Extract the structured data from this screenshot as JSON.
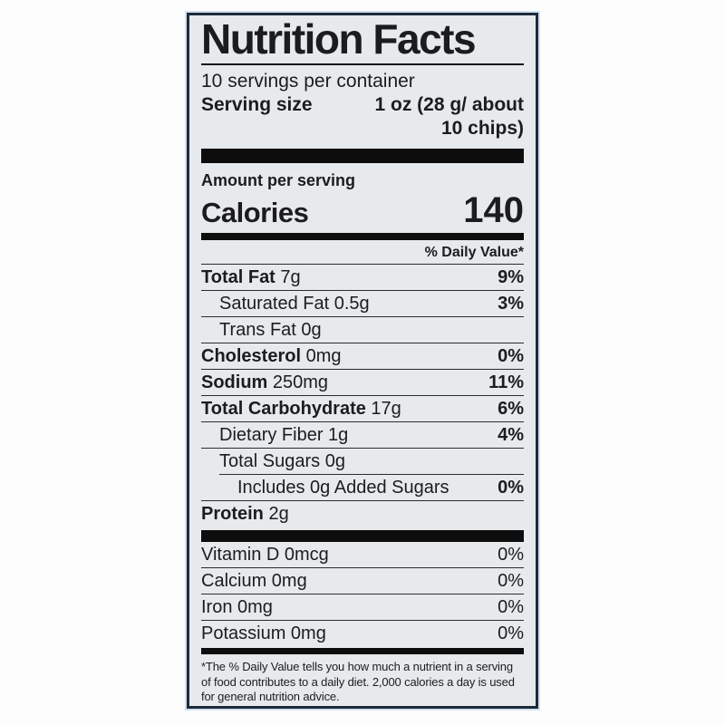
{
  "colors": {
    "label_background": "#e7eaed",
    "label_border": "#1d2b38",
    "bar_black": "#0d0d0d",
    "edge_glow_blue": "#d2e1ef",
    "text": "#1c1c1e"
  },
  "header": {
    "title": "Nutrition Facts",
    "servings_per_container": "10 servings per container",
    "serving_size_label": "Serving size",
    "serving_size_line1": "1 oz (28 g/ about",
    "serving_size_line2": "10 chips)"
  },
  "calories": {
    "amount_per_serving": "Amount per serving",
    "label": "Calories",
    "value": "140"
  },
  "daily_value_header": "% Daily Value*",
  "nutrients": [
    {
      "name": "Total Fat",
      "amount": "7g",
      "bold": true,
      "indent": 0,
      "sep_indent": 0,
      "dv": "9%",
      "dv_bold": true
    },
    {
      "name": "Saturated Fat",
      "amount": "0.5g",
      "bold": false,
      "indent": 1,
      "sep_indent": 0,
      "dv": "3%",
      "dv_bold": true
    },
    {
      "name": "Trans Fat",
      "amount": "0g",
      "bold": false,
      "indent": 1,
      "sep_indent": 0,
      "dv": "",
      "dv_bold": false
    },
    {
      "name": "Cholesterol",
      "amount": "0mg",
      "bold": true,
      "indent": 0,
      "sep_indent": 0,
      "dv": "0%",
      "dv_bold": true
    },
    {
      "name": "Sodium",
      "amount": "250mg",
      "bold": true,
      "indent": 0,
      "sep_indent": 0,
      "dv": "11%",
      "dv_bold": true
    },
    {
      "name": "Total Carbohydrate",
      "amount": "17g",
      "bold": true,
      "indent": 0,
      "sep_indent": 0,
      "dv": "6%",
      "dv_bold": true
    },
    {
      "name": "Dietary Fiber",
      "amount": "1g",
      "bold": false,
      "indent": 1,
      "sep_indent": 0,
      "dv": "4%",
      "dv_bold": true
    },
    {
      "name": "Total Sugars",
      "amount": "0g",
      "bold": false,
      "indent": 1,
      "sep_indent": 0,
      "dv": "",
      "dv_bold": false
    },
    {
      "name": "Includes 0g Added Sugars",
      "amount": "",
      "bold": false,
      "indent": 2,
      "sep_indent": 1,
      "dv": "0%",
      "dv_bold": true
    },
    {
      "name": "Protein",
      "amount": "2g",
      "bold": true,
      "indent": 0,
      "sep_indent": 0,
      "dv": "",
      "dv_bold": false
    }
  ],
  "vitamins": [
    {
      "name": "Vitamin D",
      "amount": "0mcg",
      "dv": "0%"
    },
    {
      "name": "Calcium",
      "amount": "0mg",
      "dv": "0%"
    },
    {
      "name": "Iron",
      "amount": "0mg",
      "dv": "0%"
    },
    {
      "name": "Potassium",
      "amount": "0mg",
      "dv": "0%"
    }
  ],
  "footnote": "*The % Daily Value tells you how much a nutrient in a serving of food contributes to a daily diet. 2,000 calories a day is used for general nutrition advice."
}
